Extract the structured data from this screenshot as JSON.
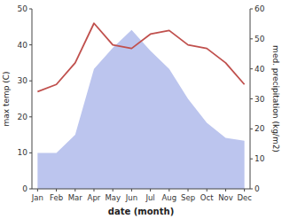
{
  "chart_data": {
    "type": "line",
    "categories": [
      "Jan",
      "Feb",
      "Mar",
      "Apr",
      "May",
      "Jun",
      "Jul",
      "Aug",
      "Sep",
      "Oct",
      "Nov",
      "Dec"
    ],
    "xlabel": "date (month)",
    "ylabel": "max temp (C)",
    "y2label": "med. precipitation (kg/m2)",
    "series": [
      {
        "type": "area",
        "axis": "y2",
        "color": "#bcc5ee",
        "values": [
          12,
          12,
          18,
          40,
          47,
          53,
          46,
          40,
          30,
          22,
          17,
          16
        ]
      },
      {
        "type": "line",
        "color": "#c0504d",
        "values": [
          27,
          29,
          35,
          46,
          40,
          39,
          43,
          44,
          40,
          39,
          35,
          29
        ]
      }
    ],
    "ylim": [
      0,
      50
    ],
    "yticks": [
      0,
      10,
      20,
      30,
      40,
      50
    ],
    "y2lim": [
      0,
      60
    ],
    "y2ticks": [
      0,
      10,
      20,
      30,
      40,
      50,
      60
    ],
    "grid": false
  }
}
